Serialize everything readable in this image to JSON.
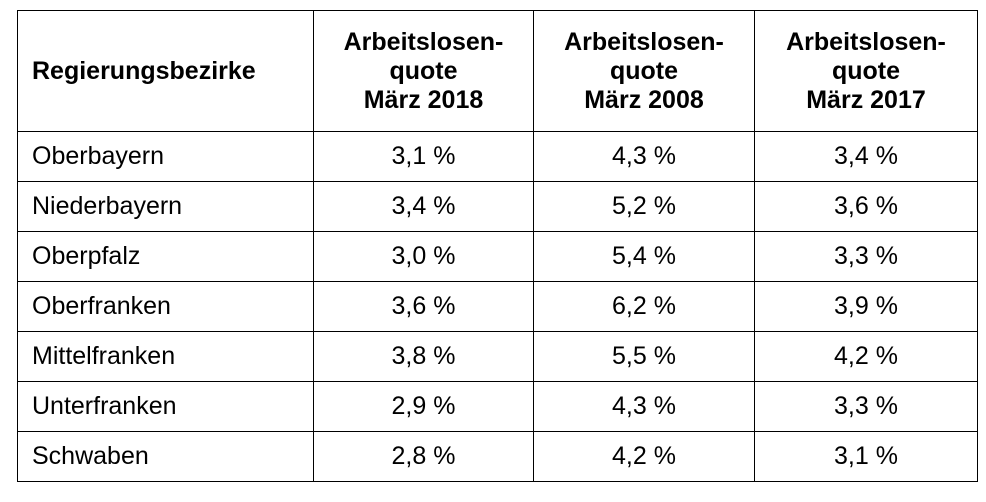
{
  "table": {
    "header": {
      "col1": "Regierungsbezirke",
      "col2": [
        "Arbeitslosen-",
        "quote",
        "März 2018"
      ],
      "col3": [
        "Arbeitslosen-",
        "quote",
        "März 2008"
      ],
      "col4": [
        "Arbeitslosen-",
        "quote",
        "März 2017"
      ]
    },
    "rows": [
      {
        "name": "Oberbayern",
        "v2018": "3,1 %",
        "v2008": "4,3 %",
        "v2017": "3,4 %"
      },
      {
        "name": "Niederbayern",
        "v2018": "3,4 %",
        "v2008": "5,2 %",
        "v2017": "3,6 %"
      },
      {
        "name": "Oberpfalz",
        "v2018": "3,0 %",
        "v2008": "5,4 %",
        "v2017": "3,3 %"
      },
      {
        "name": "Oberfranken",
        "v2018": "3,6 %",
        "v2008": "6,2 %",
        "v2017": "3,9 %"
      },
      {
        "name": "Mittelfranken",
        "v2018": "3,8 %",
        "v2008": "5,5 %",
        "v2017": "4,2 %"
      },
      {
        "name": "Unterfranken",
        "v2018": "2,9 %",
        "v2008": "4,3 %",
        "v2017": "3,3 %"
      },
      {
        "name": "Schwaben",
        "v2018": "2,8 %",
        "v2008": "4,2 %",
        "v2017": "3,1 %"
      }
    ]
  }
}
